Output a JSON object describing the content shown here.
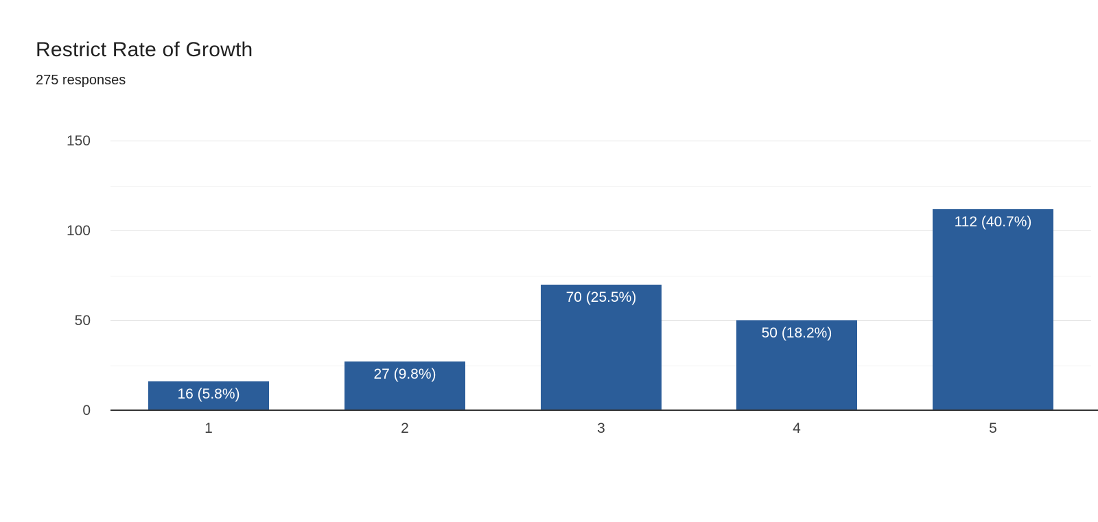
{
  "header": {
    "title": "Restrict Rate of Growth",
    "subtitle": "275 responses"
  },
  "chart_data": {
    "type": "bar",
    "title": "Restrict Rate of Growth",
    "subtitle": "275 responses",
    "categories": [
      "1",
      "2",
      "3",
      "4",
      "5"
    ],
    "values": [
      16,
      27,
      70,
      50,
      112
    ],
    "bar_labels": [
      "16 (5.8%)",
      "27 (9.8%)",
      "70 (25.5%)",
      "50 (18.2%)",
      "112 (40.7%)"
    ],
    "xlabel": "",
    "ylabel": "",
    "ylim": [
      0,
      150
    ],
    "yticks": [
      0,
      50,
      100,
      150
    ],
    "minor_gridlines": [
      25,
      75,
      125
    ],
    "grid": true,
    "legend_position": "none",
    "colors": {
      "bar": "#2b5d99",
      "bar_label_text": "#ffffff",
      "axis_line": "#333333",
      "major_gridline": "#e2e2e2",
      "minor_gridline": "#f1f1f1",
      "tick_label": "#424242",
      "title_text": "#212121",
      "background": "#ffffff"
    }
  }
}
